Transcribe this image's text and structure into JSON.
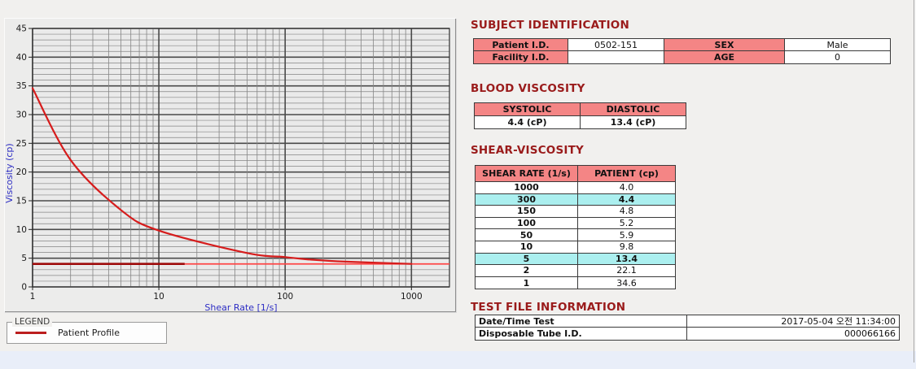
{
  "headings": {
    "subject": "SUBJECT IDENTIFICATION",
    "blood": "BLOOD VISCOSITY",
    "shear": "SHEAR-VISCOSITY",
    "testfile": "TEST FILE INFORMATION"
  },
  "subject_table": {
    "rows": [
      {
        "label1": "Patient I.D.",
        "value1": "0502-151",
        "label2": "SEX",
        "value2": "Male"
      },
      {
        "label1": "Facility I.D.",
        "value1": "",
        "label2": "AGE",
        "value2": "0"
      }
    ]
  },
  "blood_table": {
    "headers": [
      "SYSTOLIC",
      "DIASTOLIC"
    ],
    "values": [
      "4.4 (cP)",
      "13.4 (cP)"
    ]
  },
  "shear_table": {
    "headers": [
      "SHEAR RATE (1/s)",
      "PATIENT (cp)"
    ],
    "rows": [
      {
        "rate": "1000",
        "value": "4.0",
        "highlight": false
      },
      {
        "rate": "300",
        "value": "4.4",
        "highlight": true
      },
      {
        "rate": "150",
        "value": "4.8",
        "highlight": false
      },
      {
        "rate": "100",
        "value": "5.2",
        "highlight": false
      },
      {
        "rate": "50",
        "value": "5.9",
        "highlight": false
      },
      {
        "rate": "10",
        "value": "9.8",
        "highlight": false
      },
      {
        "rate": "5",
        "value": "13.4",
        "highlight": true
      },
      {
        "rate": "2",
        "value": "22.1",
        "highlight": false
      },
      {
        "rate": "1",
        "value": "34.6",
        "highlight": false
      }
    ]
  },
  "test_file": {
    "rows": [
      {
        "label": "Date/Time Test",
        "value": "2017-05-04  오전 11:34:00"
      },
      {
        "label": "Disposable Tube I.D.",
        "value": "000066166"
      }
    ]
  },
  "legend": {
    "title": "LEGEND",
    "series_label": "Patient Profile"
  },
  "chart_data": {
    "type": "line",
    "title": "",
    "xlabel": "Shear Rate [1/s]",
    "ylabel": "Viscosity (cp)",
    "x_scale": "log",
    "xlim": [
      1,
      2000
    ],
    "ylim": [
      0,
      45
    ],
    "x_ticks": [
      1,
      10,
      100,
      1000
    ],
    "y_tick_step": 5,
    "y_minor_step": 1,
    "grid": true,
    "legend_position": "below-left",
    "series": [
      {
        "name": "Patient Profile",
        "color": "#d61c1c",
        "x": [
          1,
          2,
          5,
          10,
          50,
          100,
          150,
          300,
          1000
        ],
        "y": [
          34.6,
          22.1,
          13.4,
          9.8,
          5.9,
          5.2,
          4.8,
          4.4,
          4.0
        ]
      }
    ],
    "reference_lines": [
      {
        "y": 4.0,
        "x_start": 1,
        "x_end": 2000,
        "color": "#ff4646",
        "width": 1.8,
        "name": "baseline-full"
      },
      {
        "y": 4.0,
        "x_start": 1,
        "x_end": 16,
        "color": "#9e0b0b",
        "width": 2.6,
        "name": "baseline-dark-segment"
      }
    ],
    "colors": {
      "plot_bg": "#eaeaea",
      "grid_minor": "#858585",
      "grid_major": "#4a4a4a",
      "frame": "#303030",
      "axis_title": "#2d2dc4",
      "tick_text": "#1a1a1a"
    }
  }
}
